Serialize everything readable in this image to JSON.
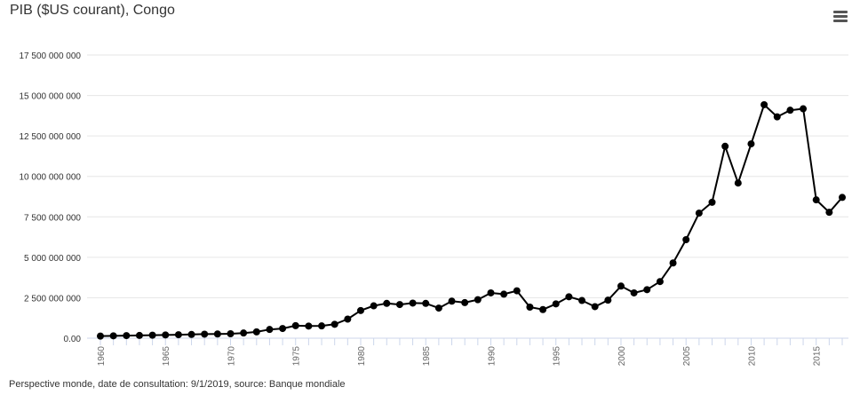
{
  "title": "PIB ($US courant), Congo",
  "menu_icon": "hamburger-menu-icon",
  "source": "Perspective monde, date de consultation: 9/1/2019, source: Banque mondiale",
  "chart_data": {
    "type": "line",
    "title": "PIB ($US courant), Congo",
    "xlabel": "",
    "ylabel": "",
    "xlim": [
      1960,
      2017
    ],
    "ylim": [
      0,
      17500000000
    ],
    "y_ticks": [
      {
        "value": 0,
        "label": "0.00"
      },
      {
        "value": 2500000000,
        "label": "2 500 000 000"
      },
      {
        "value": 5000000000,
        "label": "5 000 000 000"
      },
      {
        "value": 7500000000,
        "label": "7 500 000 000"
      },
      {
        "value": 10000000000,
        "label": "10 000 000 000"
      },
      {
        "value": 12500000000,
        "label": "12 500 000 000"
      },
      {
        "value": 15000000000,
        "label": "15 000 000 000"
      },
      {
        "value": 17500000000,
        "label": "17 500 000 000"
      }
    ],
    "x_ticks": [
      "1960",
      "1965",
      "1970",
      "1975",
      "1980",
      "1985",
      "1990",
      "1995",
      "2000",
      "2005",
      "2010",
      "2015"
    ],
    "grid": true,
    "color": "#000000",
    "x": [
      1960,
      1961,
      1962,
      1963,
      1964,
      1965,
      1966,
      1967,
      1968,
      1969,
      1970,
      1971,
      1972,
      1973,
      1974,
      1975,
      1976,
      1977,
      1978,
      1979,
      1980,
      1981,
      1982,
      1983,
      1984,
      1985,
      1986,
      1987,
      1988,
      1989,
      1990,
      1991,
      1992,
      1993,
      1994,
      1995,
      1996,
      1997,
      1998,
      1999,
      2000,
      2001,
      2002,
      2003,
      2004,
      2005,
      2006,
      2007,
      2008,
      2009,
      2010,
      2011,
      2012,
      2013,
      2014,
      2015,
      2016,
      2017
    ],
    "values": [
      130000000,
      145000000,
      160000000,
      170000000,
      185000000,
      200000000,
      215000000,
      230000000,
      250000000,
      260000000,
      275000000,
      320000000,
      390000000,
      540000000,
      600000000,
      775000000,
      750000000,
      760000000,
      860000000,
      1180000000,
      1710000000,
      2000000000,
      2150000000,
      2080000000,
      2170000000,
      2150000000,
      1860000000,
      2290000000,
      2200000000,
      2380000000,
      2800000000,
      2720000000,
      2930000000,
      1920000000,
      1770000000,
      2120000000,
      2560000000,
      2330000000,
      1950000000,
      2350000000,
      3220000000,
      2800000000,
      3000000000,
      3500000000,
      4650000000,
      6090000000,
      7730000000,
      8400000000,
      11860000000,
      9590000000,
      12010000000,
      14430000000,
      13680000000,
      14090000000,
      14180000000,
      8550000000,
      7780000000,
      8700000000
    ]
  }
}
